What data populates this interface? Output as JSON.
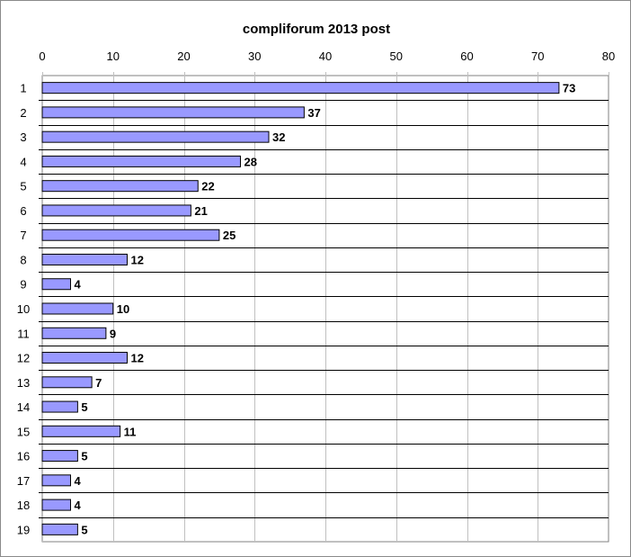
{
  "chart_data": {
    "type": "bar",
    "orientation": "horizontal",
    "title": "compliforum 2013 post",
    "categories": [
      "1",
      "2",
      "3",
      "4",
      "5",
      "6",
      "7",
      "8",
      "9",
      "10",
      "11",
      "12",
      "13",
      "14",
      "15",
      "16",
      "17",
      "18",
      "19"
    ],
    "values": [
      73,
      37,
      32,
      28,
      22,
      21,
      25,
      12,
      4,
      10,
      9,
      12,
      7,
      5,
      11,
      5,
      4,
      4,
      5
    ],
    "xlim": [
      0,
      80
    ],
    "x_ticks": [
      0,
      10,
      20,
      30,
      40,
      50,
      60,
      70,
      80
    ],
    "x_axis_position": "top",
    "grid": true,
    "data_labels": true,
    "bar_color": "#9999ff",
    "bar_edge_color": "#000000",
    "grid_color": "#c0c0c0"
  }
}
